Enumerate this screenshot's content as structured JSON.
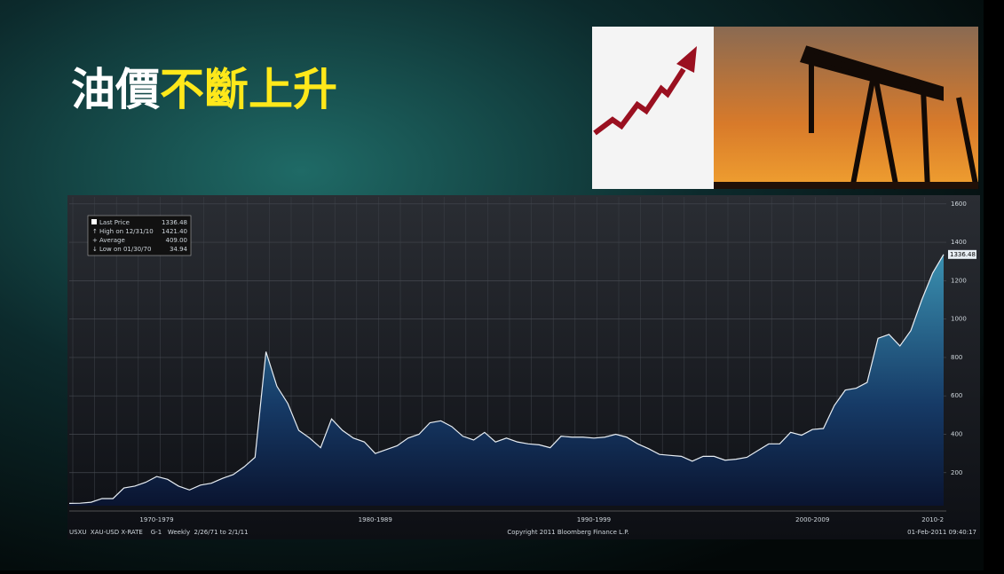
{
  "title_white": "油價",
  "title_yellow": "不斷上升",
  "chart_data": {
    "type": "area",
    "categories": [
      null,
      null,
      null,
      null,
      null,
      null,
      null,
      null,
      "1970-1979",
      null,
      null,
      null,
      null,
      null,
      null,
      null,
      null,
      null,
      null,
      null,
      null,
      null,
      null,
      null,
      null,
      null,
      null,
      null,
      "1980-1989",
      null,
      null,
      null,
      null,
      null,
      null,
      null,
      null,
      null,
      null,
      null,
      null,
      null,
      null,
      null,
      null,
      null,
      null,
      null,
      "1990-1999",
      null,
      null,
      null,
      null,
      null,
      null,
      null,
      null,
      null,
      null,
      null,
      null,
      null,
      null,
      null,
      null,
      null,
      null,
      null,
      "2000-2009",
      null,
      null,
      null,
      null,
      null,
      null,
      null,
      null,
      null,
      null,
      "2010-2",
      null
    ],
    "series": [
      {
        "name": "Last Price",
        "color": "#e8eef4",
        "values": [
          40,
          41,
          46,
          65,
          65,
          120,
          130,
          150,
          180,
          165,
          130,
          110,
          135,
          145,
          170,
          190,
          230,
          280,
          830,
          650,
          560,
          420,
          380,
          330,
          480,
          420,
          380,
          360,
          300,
          320,
          340,
          380,
          400,
          460,
          470,
          440,
          390,
          370,
          410,
          360,
          380,
          360,
          350,
          345,
          330,
          390,
          385,
          385,
          380,
          385,
          400,
          385,
          350,
          325,
          295,
          290,
          285,
          260,
          285,
          285,
          265,
          270,
          280,
          315,
          350,
          350,
          410,
          395,
          425,
          430,
          550,
          630,
          640,
          670,
          900,
          920,
          860,
          940,
          1100,
          1240,
          1336.48
        ]
      }
    ],
    "legend": [
      {
        "label": "High on 12/31/10",
        "value": "1421.40"
      },
      {
        "label": "Average",
        "value": "409.00"
      },
      {
        "label": "Low on 01/30/70",
        "value": "34.94"
      }
    ],
    "ylim": [
      28,
      1636
    ],
    "yticks": [
      200,
      400,
      600,
      800,
      1000,
      1200,
      1400,
      1600
    ],
    "grid": true,
    "footer_left": "USXU  XAU-USD X-RATE    G-1   Weekly  2/26/71 to 2/1/11",
    "footer_center": "Copyright 2011 Bloomberg Finance L.P.",
    "footer_right": "01-Feb-2011 09:40:17"
  }
}
